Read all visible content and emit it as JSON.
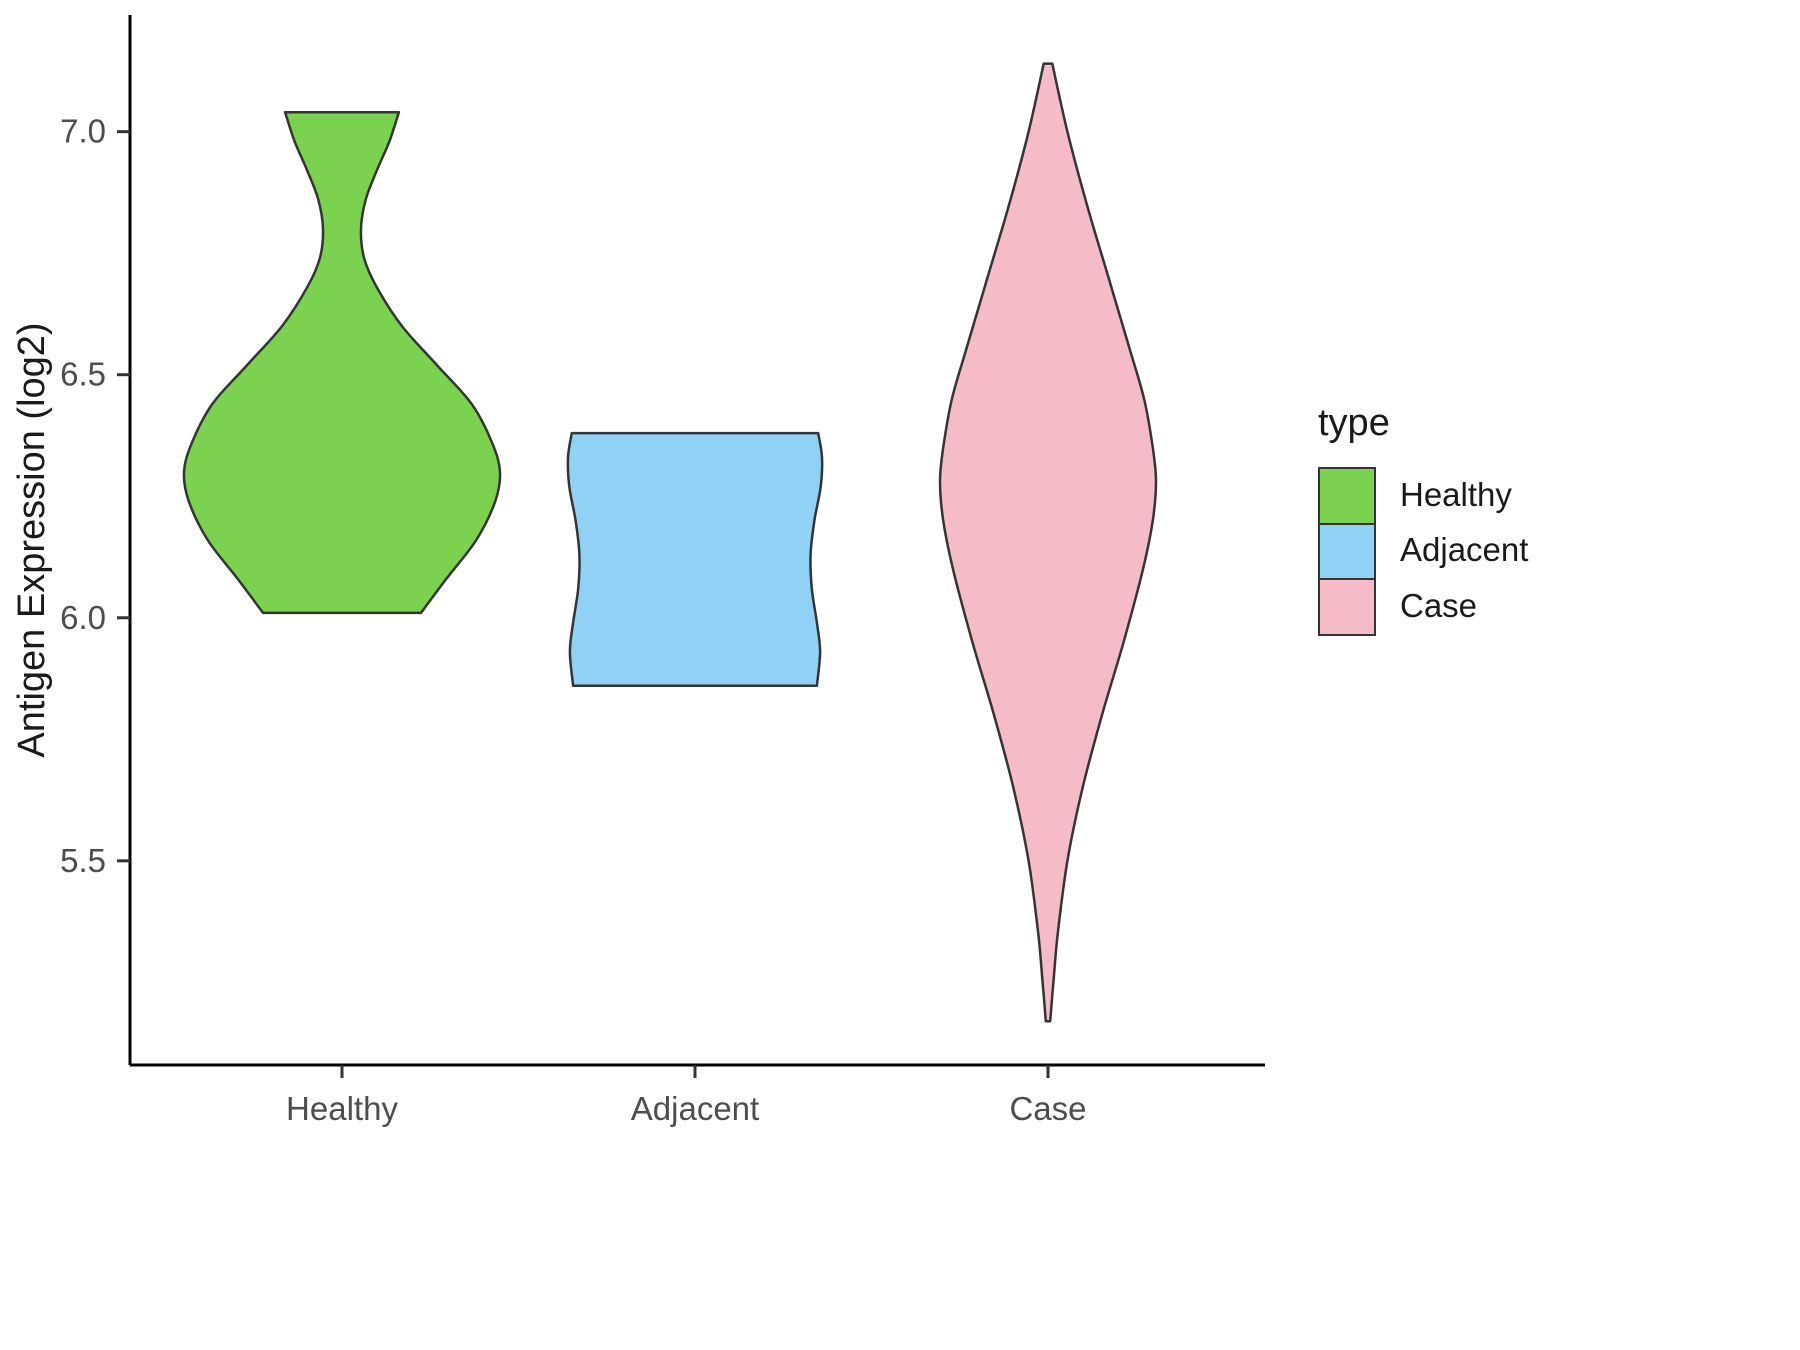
{
  "chart_data": {
    "type": "violin",
    "title": "",
    "xlabel": "",
    "ylabel": "Antigen Expression (log2)",
    "x_categories": [
      "Healthy",
      "Adjacent",
      "Case"
    ],
    "y_ticks": [
      "5.5",
      "6.0",
      "6.5",
      "7.0"
    ],
    "ylim": [
      5.08,
      7.24
    ],
    "grid": "off",
    "legend": {
      "title": "type",
      "position": "right"
    },
    "series": [
      {
        "name": "Healthy",
        "color": "#7bd24e",
        "outline": "#343434",
        "min": 6.01,
        "max": 7.04,
        "profile": [
          [
            7.04,
            0.36
          ],
          [
            6.98,
            0.3
          ],
          [
            6.92,
            0.22
          ],
          [
            6.86,
            0.15
          ],
          [
            6.8,
            0.12
          ],
          [
            6.74,
            0.14
          ],
          [
            6.68,
            0.22
          ],
          [
            6.6,
            0.38
          ],
          [
            6.52,
            0.6
          ],
          [
            6.44,
            0.82
          ],
          [
            6.36,
            0.95
          ],
          [
            6.3,
            1.0
          ],
          [
            6.24,
            0.97
          ],
          [
            6.16,
            0.85
          ],
          [
            6.08,
            0.66
          ],
          [
            6.01,
            0.5
          ]
        ]
      },
      {
        "name": "Adjacent",
        "color": "#8fd2f6",
        "outline": "#343434",
        "min": 5.86,
        "max": 6.38,
        "profile": [
          [
            6.38,
            0.97
          ],
          [
            6.33,
            1.0
          ],
          [
            6.27,
            0.99
          ],
          [
            6.2,
            0.94
          ],
          [
            6.13,
            0.91
          ],
          [
            6.06,
            0.92
          ],
          [
            5.99,
            0.96
          ],
          [
            5.93,
            0.985
          ],
          [
            5.86,
            0.96
          ]
        ]
      },
      {
        "name": "Case",
        "color": "#f5bcc8",
        "outline": "#343434",
        "min": 5.17,
        "max": 7.14,
        "profile": [
          [
            7.14,
            0.04
          ],
          [
            7.0,
            0.18
          ],
          [
            6.85,
            0.36
          ],
          [
            6.7,
            0.56
          ],
          [
            6.55,
            0.76
          ],
          [
            6.45,
            0.89
          ],
          [
            6.35,
            0.97
          ],
          [
            6.28,
            1.0
          ],
          [
            6.2,
            0.97
          ],
          [
            6.1,
            0.88
          ],
          [
            5.95,
            0.7
          ],
          [
            5.8,
            0.5
          ],
          [
            5.65,
            0.32
          ],
          [
            5.5,
            0.18
          ],
          [
            5.35,
            0.09
          ],
          [
            5.25,
            0.05
          ],
          [
            5.17,
            0.02
          ]
        ]
      }
    ]
  }
}
